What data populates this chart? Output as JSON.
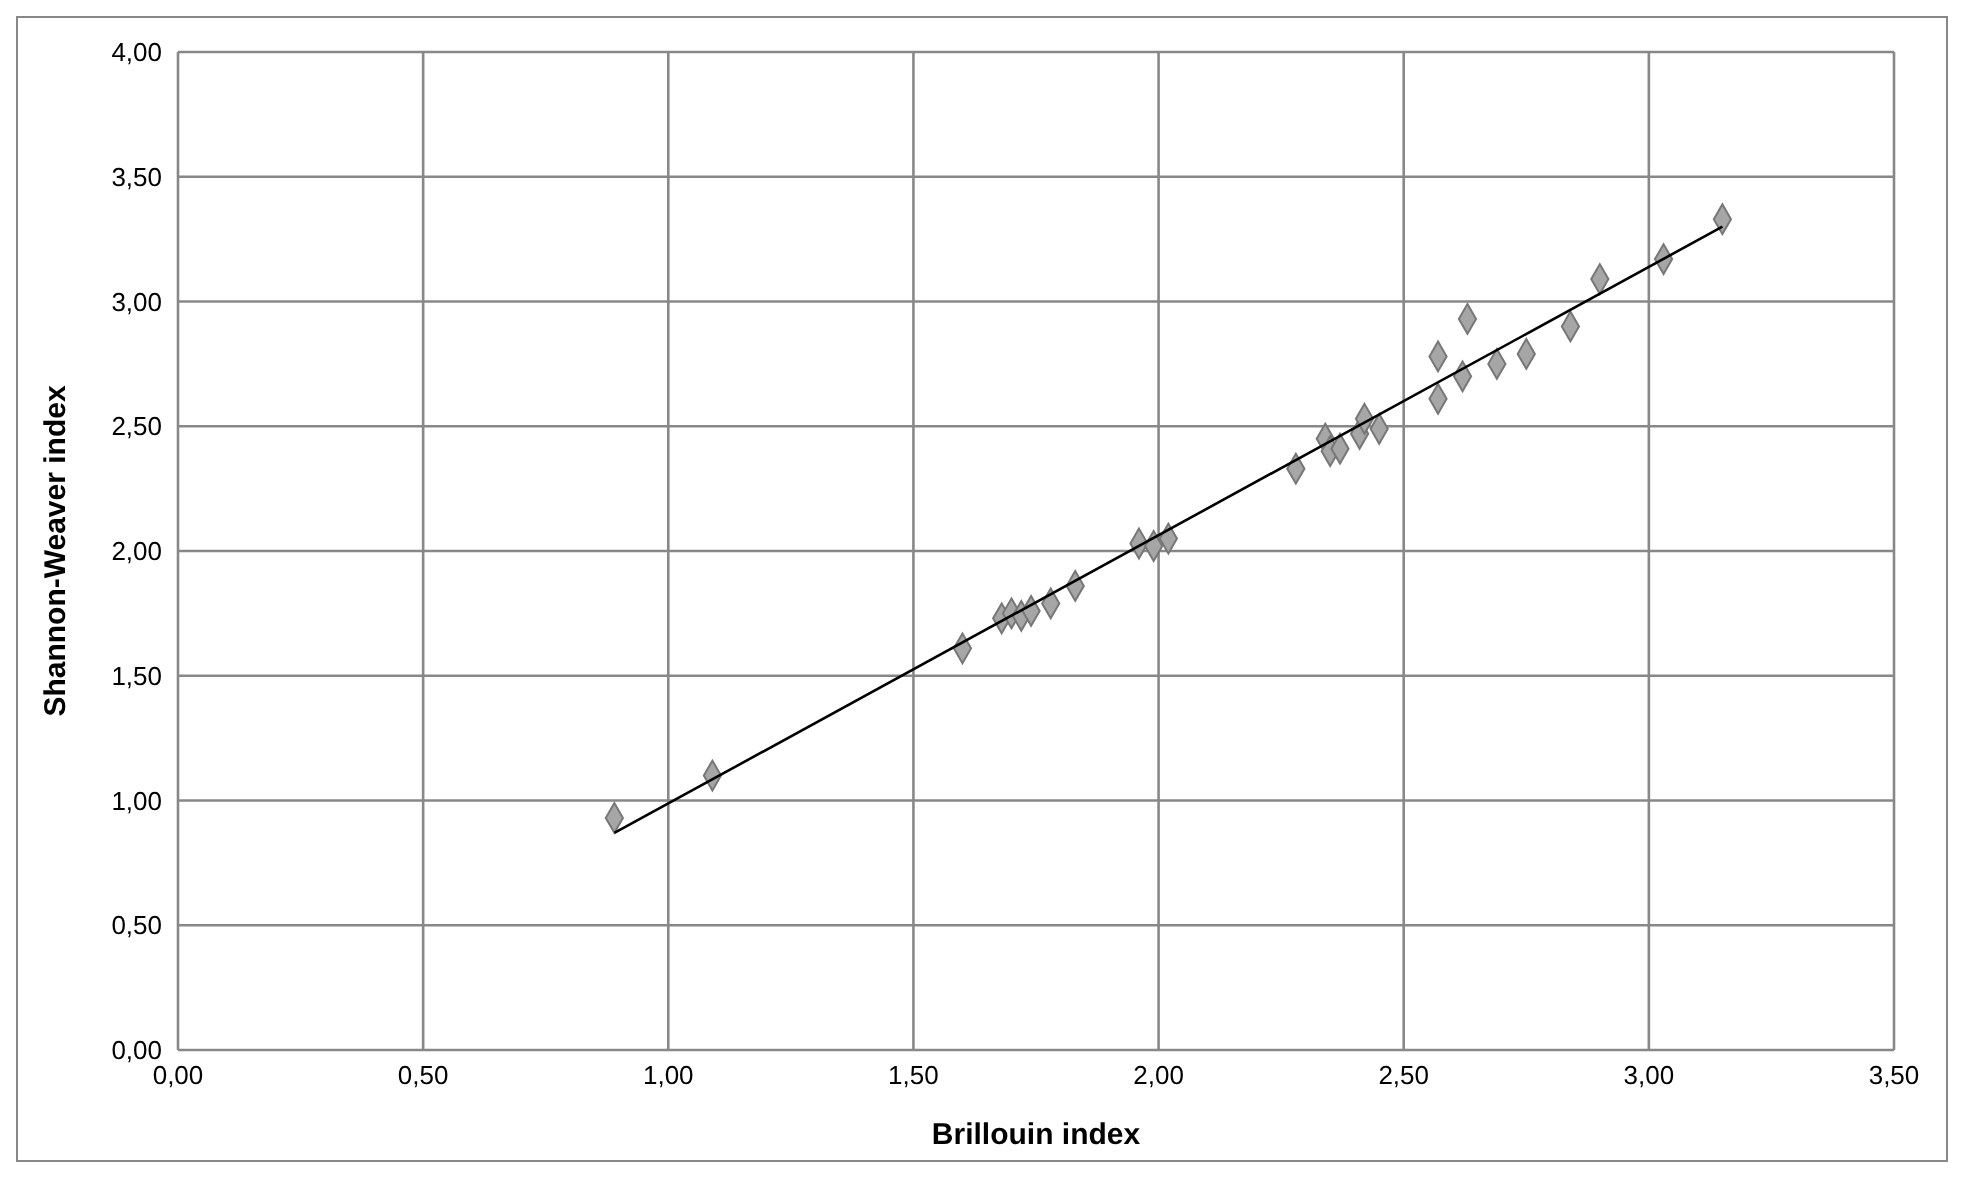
{
  "chart_data": {
    "type": "scatter",
    "xlabel": "Brillouin index",
    "ylabel": "Shannon-Weaver index",
    "xlim": [
      0,
      3.5
    ],
    "ylim": [
      0,
      4
    ],
    "xticks": [
      {
        "value": 0,
        "label": "0,00"
      },
      {
        "value": 0.5,
        "label": "0,50"
      },
      {
        "value": 1,
        "label": "1,00"
      },
      {
        "value": 1.5,
        "label": "1,50"
      },
      {
        "value": 2,
        "label": "2,00"
      },
      {
        "value": 2.5,
        "label": "2,50"
      },
      {
        "value": 3,
        "label": "3,00"
      },
      {
        "value": 3.5,
        "label": "3,50"
      }
    ],
    "yticks": [
      {
        "value": 0,
        "label": "0,00"
      },
      {
        "value": 0.5,
        "label": "0,50"
      },
      {
        "value": 1,
        "label": "1,00"
      },
      {
        "value": 1.5,
        "label": "1,50"
      },
      {
        "value": 2,
        "label": "2,00"
      },
      {
        "value": 2.5,
        "label": "2,50"
      },
      {
        "value": 3,
        "label": "3,00"
      },
      {
        "value": 3.5,
        "label": "3,50"
      },
      {
        "value": 4,
        "label": "4,00"
      }
    ],
    "grid": true,
    "legend": false,
    "marker": "diamond",
    "series": [
      {
        "color": "#a6a6a6",
        "x": [
          0.89,
          1.09,
          1.6,
          1.68,
          1.7,
          1.72,
          1.74,
          1.78,
          1.83,
          1.96,
          1.99,
          2.02,
          2.28,
          2.34,
          2.35,
          2.37,
          2.41,
          2.42,
          2.45,
          2.57,
          2.57,
          2.62,
          2.63,
          2.69,
          2.75,
          2.84,
          2.9,
          3.03,
          3.15
        ],
        "values": [
          0.93,
          1.1,
          1.61,
          1.73,
          1.75,
          1.74,
          1.76,
          1.79,
          1.86,
          2.03,
          2.02,
          2.05,
          2.33,
          2.45,
          2.4,
          2.41,
          2.47,
          2.53,
          2.49,
          2.61,
          2.78,
          2.7,
          2.93,
          2.75,
          2.79,
          2.9,
          3.09,
          3.17,
          3.33
        ]
      },
      {
        "type": "line",
        "color": "#000000",
        "marker": "none",
        "x": [
          0.89,
          3.15
        ],
        "values": [
          0.87,
          3.3
        ]
      }
    ]
  }
}
